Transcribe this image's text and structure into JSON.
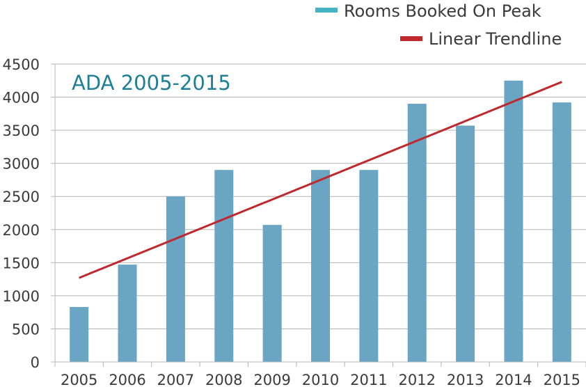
{
  "chart_data": {
    "type": "bar",
    "title": "ADA 2005-2015",
    "categories": [
      "2005",
      "2006",
      "2007",
      "2008",
      "2009",
      "2010",
      "2011",
      "2012",
      "2013",
      "2014",
      "2015"
    ],
    "series": [
      {
        "name": "Rooms Booked On Peak",
        "type": "bar",
        "values": [
          830,
          1470,
          2500,
          2900,
          2070,
          2900,
          2900,
          3900,
          3570,
          4250,
          3920
        ]
      },
      {
        "name": "Linear Trendline",
        "type": "line",
        "start": 1270,
        "end": 4230
      }
    ],
    "yticks": [
      "0",
      "500",
      "1000",
      "1500",
      "2000",
      "2500",
      "3000",
      "3500",
      "4000",
      "4500"
    ],
    "ylim": [
      0,
      4500
    ],
    "xlabel": "",
    "ylabel": "",
    "grid": "horizontal",
    "legend_position": "top-right",
    "colors": {
      "bar": "#6aa6c4",
      "legend_bar": "#46b2c6",
      "trend": "#c0282e",
      "title": "#1f7f96",
      "grid": "#b4b4b4"
    }
  }
}
